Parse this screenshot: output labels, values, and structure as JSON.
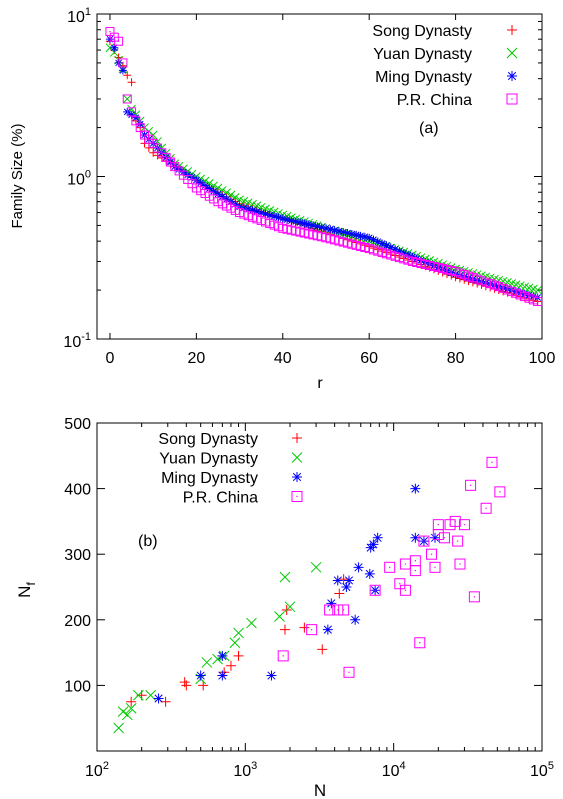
{
  "chart_data": [
    {
      "type": "scatter",
      "panel_label": "(a)",
      "xlabel": "r",
      "ylabel": "Family Size (%)",
      "xlim": [
        -3,
        100
      ],
      "xticks": [
        0,
        20,
        40,
        60,
        80,
        100
      ],
      "ylim": [
        0.1,
        10
      ],
      "yscale": "log",
      "yticks": [
        {
          "base": "10",
          "exp": "-1",
          "value": 0.1
        },
        {
          "base": "10",
          "exp": "0",
          "value": 1
        },
        {
          "base": "10",
          "exp": "1",
          "value": 10
        }
      ],
      "legend_position": "top-right",
      "series": [
        {
          "name": "Song Dynasty",
          "marker": "plus",
          "color": "#ff0000",
          "anchors": [
            [
              0,
              6.8
            ],
            [
              1,
              6.0
            ],
            [
              2,
              5.4
            ],
            [
              3,
              4.8
            ],
            [
              4,
              4.2
            ],
            [
              5,
              3.8
            ],
            [
              6,
              2.2
            ],
            [
              7,
              2.0
            ],
            [
              8,
              1.6
            ],
            [
              9,
              1.5
            ],
            [
              10,
              1.4
            ],
            [
              12,
              1.3
            ],
            [
              15,
              1.15
            ],
            [
              20,
              0.95
            ],
            [
              25,
              0.8
            ],
            [
              30,
              0.68
            ],
            [
              40,
              0.55
            ],
            [
              50,
              0.45
            ],
            [
              60,
              0.37
            ],
            [
              70,
              0.3
            ],
            [
              80,
              0.24
            ],
            [
              90,
              0.2
            ],
            [
              99,
              0.17
            ]
          ]
        },
        {
          "name": "Yuan Dynasty",
          "marker": "x",
          "color": "#00cc00",
          "anchors": [
            [
              0,
              6.2
            ],
            [
              1,
              5.8
            ],
            [
              2,
              5.2
            ],
            [
              3,
              4.6
            ],
            [
              4,
              3.0
            ],
            [
              5,
              2.6
            ],
            [
              6,
              2.4
            ],
            [
              7,
              2.2
            ],
            [
              8,
              2.0
            ],
            [
              10,
              1.8
            ],
            [
              12,
              1.5
            ],
            [
              15,
              1.2
            ],
            [
              20,
              1.0
            ],
            [
              25,
              0.85
            ],
            [
              30,
              0.72
            ],
            [
              40,
              0.58
            ],
            [
              50,
              0.48
            ],
            [
              60,
              0.4
            ],
            [
              70,
              0.33
            ],
            [
              80,
              0.27
            ],
            [
              90,
              0.23
            ],
            [
              99,
              0.2
            ]
          ]
        },
        {
          "name": "Ming Dynasty",
          "marker": "star",
          "color": "#0000ff",
          "anchors": [
            [
              0,
              7.0
            ],
            [
              1,
              6.2
            ],
            [
              2,
              5.0
            ],
            [
              3,
              4.5
            ],
            [
              4,
              2.5
            ],
            [
              5,
              2.4
            ],
            [
              6,
              2.3
            ],
            [
              7,
              2.1
            ],
            [
              8,
              1.8
            ],
            [
              10,
              1.6
            ],
            [
              12,
              1.4
            ],
            [
              15,
              1.15
            ],
            [
              20,
              0.95
            ],
            [
              25,
              0.78
            ],
            [
              30,
              0.65
            ],
            [
              40,
              0.55
            ],
            [
              50,
              0.48
            ],
            [
              60,
              0.42
            ],
            [
              70,
              0.32
            ],
            [
              80,
              0.25
            ],
            [
              90,
              0.21
            ],
            [
              99,
              0.18
            ]
          ]
        },
        {
          "name": "P.R. China",
          "marker": "square",
          "color": "#ff00ff",
          "anchors": [
            [
              0,
              7.8
            ],
            [
              1,
              7.2
            ],
            [
              2,
              6.8
            ],
            [
              3,
              5.0
            ],
            [
              4,
              3.0
            ],
            [
              5,
              2.5
            ],
            [
              6,
              2.2
            ],
            [
              7,
              2.0
            ],
            [
              8,
              1.8
            ],
            [
              10,
              1.6
            ],
            [
              12,
              1.4
            ],
            [
              15,
              1.15
            ],
            [
              20,
              0.85
            ],
            [
              25,
              0.7
            ],
            [
              30,
              0.6
            ],
            [
              40,
              0.48
            ],
            [
              50,
              0.42
            ],
            [
              60,
              0.36
            ],
            [
              70,
              0.3
            ],
            [
              80,
              0.26
            ],
            [
              90,
              0.21
            ],
            [
              99,
              0.17
            ]
          ]
        }
      ]
    },
    {
      "type": "scatter",
      "panel_label": "(b)",
      "xlabel": "N",
      "ylabel": {
        "base": "N",
        "sub": "f"
      },
      "xscale": "log",
      "xlim": [
        100,
        100000
      ],
      "xticks": [
        {
          "base": "10",
          "exp": "2",
          "value": 100
        },
        {
          "base": "10",
          "exp": "3",
          "value": 1000
        },
        {
          "base": "10",
          "exp": "4",
          "value": 10000
        },
        {
          "base": "10",
          "exp": "5",
          "value": 100000
        }
      ],
      "ylim": [
        0,
        500
      ],
      "yticks": [
        100,
        200,
        300,
        400,
        500
      ],
      "legend_position": "top-left",
      "series": [
        {
          "name": "Song Dynasty",
          "marker": "plus",
          "color": "#ff0000",
          "points": [
            [
              170,
              75
            ],
            [
              200,
              85
            ],
            [
              290,
              75
            ],
            [
              390,
              105
            ],
            [
              400,
              100
            ],
            [
              520,
              100
            ],
            [
              720,
              120
            ],
            [
              800,
              130
            ],
            [
              900,
              145
            ],
            [
              1850,
              185
            ],
            [
              1900,
              215
            ],
            [
              2500,
              188
            ],
            [
              3300,
              155
            ],
            [
              4300,
              240
            ],
            [
              4600,
              262
            ]
          ]
        },
        {
          "name": "Yuan Dynasty",
          "marker": "x",
          "color": "#00cc00",
          "points": [
            [
              140,
              35
            ],
            [
              150,
              60
            ],
            [
              160,
              55
            ],
            [
              170,
              65
            ],
            [
              190,
              85
            ],
            [
              230,
              85
            ],
            [
              500,
              110
            ],
            [
              550,
              135
            ],
            [
              650,
              140
            ],
            [
              720,
              145
            ],
            [
              850,
              165
            ],
            [
              900,
              180
            ],
            [
              1100,
              195
            ],
            [
              1700,
              205
            ],
            [
              1850,
              265
            ],
            [
              2000,
              220
            ],
            [
              3000,
              280
            ]
          ]
        },
        {
          "name": "Ming Dynasty",
          "marker": "star",
          "color": "#0000ff",
          "points": [
            [
              260,
              80
            ],
            [
              500,
              115
            ],
            [
              700,
              145
            ],
            [
              700,
              115
            ],
            [
              1500,
              115
            ],
            [
              3600,
              185
            ],
            [
              3800,
              225
            ],
            [
              4200,
              260
            ],
            [
              4800,
              250
            ],
            [
              5000,
              260
            ],
            [
              5500,
              200
            ],
            [
              5800,
              280
            ],
            [
              6900,
              270
            ],
            [
              7000,
              310
            ],
            [
              7300,
              315
            ],
            [
              7500,
              245
            ],
            [
              7800,
              325
            ],
            [
              14000,
              325
            ],
            [
              14000,
              400
            ],
            [
              16000,
              320
            ],
            [
              19000,
              325
            ]
          ]
        },
        {
          "name": "P.R. China",
          "marker": "square",
          "color": "#ff00ff",
          "points": [
            [
              1800,
              145
            ],
            [
              2800,
              185
            ],
            [
              3700,
              215
            ],
            [
              4200,
              215
            ],
            [
              4600,
              215
            ],
            [
              5000,
              120
            ],
            [
              7500,
              245
            ],
            [
              9400,
              280
            ],
            [
              11000,
              255
            ],
            [
              12000,
              245
            ],
            [
              12000,
              285
            ],
            [
              14000,
              290
            ],
            [
              14000,
              275
            ],
            [
              15000,
              165
            ],
            [
              16000,
              320
            ],
            [
              18000,
              300
            ],
            [
              19000,
              280
            ],
            [
              20000,
              330
            ],
            [
              20000,
              345
            ],
            [
              22000,
              325
            ],
            [
              24000,
              345
            ],
            [
              26000,
              350
            ],
            [
              27000,
              320
            ],
            [
              28000,
              285
            ],
            [
              30000,
              345
            ],
            [
              33000,
              405
            ],
            [
              35000,
              235
            ],
            [
              42000,
              370
            ],
            [
              46000,
              440
            ],
            [
              52000,
              395
            ]
          ]
        }
      ]
    }
  ]
}
